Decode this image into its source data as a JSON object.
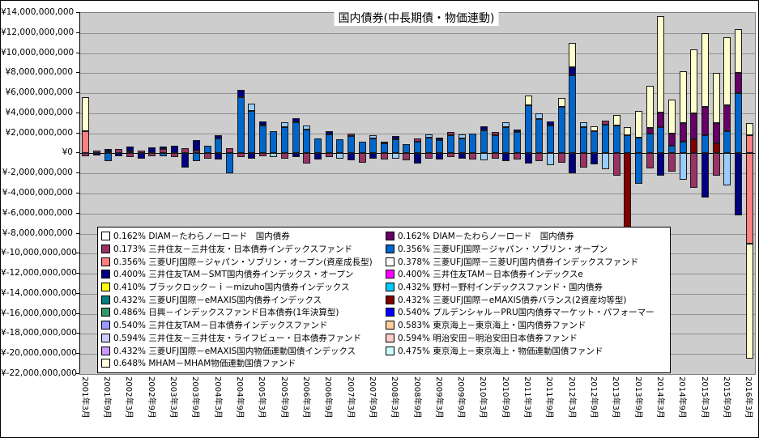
{
  "chart_data": {
    "type": "bar",
    "stacked": true,
    "title": "国内債券(中長期債・物価連動)",
    "currency": "¥",
    "unit_multiplier": 1000000000,
    "values_are_estimates": true,
    "grid": true,
    "legend_position": "inside-bottom-left",
    "y_axis": {
      "min": -22000000000,
      "max": 14000000000,
      "step": 2000000000,
      "tick_labels": [
        "¥14,000,000,000",
        "¥12,000,000,000",
        "¥10,000,000,000",
        "¥8,000,000,000",
        "¥6,000,000,000",
        "¥4,000,000,000",
        "¥2,000,000,000",
        "¥0",
        "¥-2,000,000,000",
        "¥-4,000,000,000",
        "¥-6,000,000,000",
        "¥-8,000,000,000",
        "¥-10,000,000,000",
        "¥-12,000,000,000",
        "¥-14,000,000,000",
        "¥-16,000,000,000",
        "¥-18,000,000,000",
        "¥-20,000,000,000",
        "¥-22,000,000,000"
      ]
    },
    "x_axis": {
      "tick_labels": [
        "2001年3月",
        "2001年9月",
        "2002年3月",
        "2002年9月",
        "2003年3月",
        "2003年9月",
        "2004年3月",
        "2004年9月",
        "2005年3月",
        "2005年9月",
        "2006年3月",
        "2006年9月",
        "2007年3月",
        "2007年9月",
        "2008年3月",
        "2008年9月",
        "2009年3月",
        "2009年9月",
        "2010年3月",
        "2010年9月",
        "2011年3月",
        "2011年9月",
        "2012年3月",
        "2012年9月",
        "2013年3月",
        "2013年9月",
        "2014年3月",
        "2014年9月",
        "2015年3月",
        "2015年9月",
        "2016年3月"
      ]
    },
    "palette": {
      "sovereign_blue": "#0066CC",
      "salmon": "#FF8080",
      "ivory": "#FFFFCC",
      "maroon": "#800000",
      "purple": "#660066",
      "plum": "#993366",
      "navy": "#000080",
      "skyblue": "#99CCFF"
    },
    "stack_order": [
      "sovereign_blue",
      "salmon",
      "plum",
      "navy",
      "skyblue",
      "maroon",
      "purple",
      "ivory"
    ],
    "bars": [
      {
        "t": "2001年3月",
        "p": {
          "salmon": 2.2,
          "ivory": 3.4
        },
        "n": {
          "plum": 0.3
        }
      },
      {
        "t": "2001年6月",
        "p": {
          "plum": 0.3
        },
        "n": {
          "navy": 0.2
        }
      },
      {
        "t": "2001年9月",
        "p": {
          "plum": 0.2,
          "navy": 0.2
        },
        "n": {
          "sovereign_blue": 0.8
        }
      },
      {
        "t": "2001年12月",
        "p": {
          "plum": 0.4
        },
        "n": {
          "navy": 0.3
        }
      },
      {
        "t": "2002年3月",
        "p": {
          "navy": 0.5,
          "plum": 0.2
        },
        "n": {
          "plum": 0.4
        }
      },
      {
        "t": "2002年6月",
        "p": {
          "plum": 0.3
        },
        "n": {
          "navy": 0.5
        }
      },
      {
        "t": "2002年9月",
        "p": {
          "navy": 0.6
        },
        "n": {
          "plum": 0.3
        }
      },
      {
        "t": "2002年12月",
        "p": {
          "plum": 0.4,
          "navy": 0.3
        },
        "n": {
          "sovereign_blue": 0.3
        }
      },
      {
        "t": "2003年3月",
        "p": {
          "navy": 0.8
        },
        "n": {
          "plum": 0.4
        }
      },
      {
        "t": "2003年6月",
        "p": {
          "plum": 0.5
        },
        "n": {
          "navy": 1.4
        }
      },
      {
        "t": "2003年9月",
        "p": {
          "navy": 1.0,
          "plum": 0.3
        },
        "n": {
          "sovereign_blue": 0.8
        }
      },
      {
        "t": "2003年12月",
        "p": {
          "sovereign_blue": 0.8
        },
        "n": {
          "plum": 0.5
        }
      },
      {
        "t": "2004年3月",
        "p": {
          "sovereign_blue": 1.5,
          "navy": 0.3
        },
        "n": {
          "navy": 0.6
        }
      },
      {
        "t": "2004年6月",
        "p": {
          "plum": 0.5
        },
        "n": {
          "sovereign_blue": 2.0
        }
      },
      {
        "t": "2004年9月",
        "p": {
          "sovereign_blue": 5.6,
          "navy": 0.7
        },
        "n": {
          "plum": 0.4
        }
      },
      {
        "t": "2004年12月",
        "p": {
          "sovereign_blue": 4.2,
          "skyblue": 0.8
        },
        "n": {
          "navy": 0.5
        }
      },
      {
        "t": "2005年3月",
        "p": {
          "sovereign_blue": 2.8,
          "navy": 0.4
        },
        "n": {
          "plum": 0.3
        }
      },
      {
        "t": "2005年6月",
        "p": {
          "sovereign_blue": 2.2
        },
        "n": {
          "skyblue": 0.4
        }
      },
      {
        "t": "2005年9月",
        "p": {
          "sovereign_blue": 2.6,
          "skyblue": 0.5
        },
        "n": {
          "plum": 0.5
        }
      },
      {
        "t": "2005年12月",
        "p": {
          "sovereign_blue": 3.1,
          "navy": 0.4
        },
        "n": {
          "navy": 0.4
        }
      },
      {
        "t": "2006年3月",
        "p": {
          "sovereign_blue": 2.4,
          "skyblue": 0.4
        },
        "n": {
          "plum": 1.0
        }
      },
      {
        "t": "2006年6月",
        "p": {
          "sovereign_blue": 1.5
        },
        "n": {
          "navy": 0.6
        }
      },
      {
        "t": "2006年9月",
        "p": {
          "sovereign_blue": 1.9,
          "navy": 0.3
        },
        "n": {
          "plum": 0.4
        }
      },
      {
        "t": "2006年12月",
        "p": {
          "sovereign_blue": 1.4
        },
        "n": {
          "skyblue": 0.5
        }
      },
      {
        "t": "2007年3月",
        "p": {
          "sovereign_blue": 1.7,
          "plum": 0.3
        },
        "n": {
          "navy": 0.7
        }
      },
      {
        "t": "2007年6月",
        "p": {
          "sovereign_blue": 1.2
        },
        "n": {
          "plum": 0.9
        }
      },
      {
        "t": "2007年9月",
        "p": {
          "sovereign_blue": 1.5,
          "skyblue": 0.3
        },
        "n": {
          "navy": 0.5
        }
      },
      {
        "t": "2007年12月",
        "p": {
          "sovereign_blue": 1.0,
          "plum": 0.2
        },
        "n": {
          "plum": 0.6
        }
      },
      {
        "t": "2008年3月",
        "p": {
          "sovereign_blue": 1.4,
          "navy": 0.3
        },
        "n": {
          "skyblue": 0.5
        }
      },
      {
        "t": "2008年6月",
        "p": {
          "sovereign_blue": 0.9
        },
        "n": {
          "plum": 0.7
        }
      },
      {
        "t": "2008年9月",
        "p": {
          "sovereign_blue": 1.2,
          "plum": 0.3
        },
        "n": {
          "navy": 1.0
        }
      },
      {
        "t": "2008年12月",
        "p": {
          "sovereign_blue": 1.6,
          "skyblue": 0.3
        },
        "n": {
          "plum": 0.5
        }
      },
      {
        "t": "2009年3月",
        "p": {
          "sovereign_blue": 1.3,
          "navy": 0.3
        },
        "n": {
          "navy": 0.6
        }
      },
      {
        "t": "2009年6月",
        "p": {
          "sovereign_blue": 1.8,
          "plum": 0.3
        },
        "n": {
          "plum": 0.4
        }
      },
      {
        "t": "2009年9月",
        "p": {
          "sovereign_blue": 1.5,
          "skyblue": 0.4
        },
        "n": {
          "navy": 0.5
        }
      },
      {
        "t": "2009年12月",
        "p": {
          "sovereign_blue": 2.0
        },
        "n": {
          "plum": 0.6
        }
      },
      {
        "t": "2010年3月",
        "p": {
          "sovereign_blue": 2.3,
          "navy": 0.4
        },
        "n": {
          "skyblue": 0.7
        }
      },
      {
        "t": "2010年6月",
        "p": {
          "sovereign_blue": 1.8,
          "plum": 0.3
        },
        "n": {
          "plum": 0.5
        }
      },
      {
        "t": "2010年9月",
        "p": {
          "sovereign_blue": 2.6,
          "skyblue": 0.5
        },
        "n": {
          "navy": 0.8
        }
      },
      {
        "t": "2010年12月",
        "p": {
          "sovereign_blue": 2.1,
          "navy": 0.3
        },
        "n": {
          "plum": 0.6
        }
      },
      {
        "t": "2011年3月",
        "p": {
          "sovereign_blue": 4.8,
          "ivory": 1.0
        },
        "n": {
          "navy": 1.0
        }
      },
      {
        "t": "2011年6月",
        "p": {
          "sovereign_blue": 3.4,
          "skyblue": 0.6
        },
        "n": {
          "plum": 0.8
        }
      },
      {
        "t": "2011年9月",
        "p": {
          "sovereign_blue": 2.8,
          "navy": 0.4
        },
        "n": {
          "skyblue": 1.2
        }
      },
      {
        "t": "2011年12月",
        "p": {
          "sovereign_blue": 4.6,
          "ivory": 0.9
        },
        "n": {
          "plum": 0.9
        }
      },
      {
        "t": "2012年3月",
        "p": {
          "sovereign_blue": 7.8,
          "navy": 0.8,
          "ivory": 2.4
        },
        "n": {
          "navy": 2.0
        }
      },
      {
        "t": "2012年6月",
        "p": {
          "sovereign_blue": 2.6,
          "skyblue": 0.5
        },
        "n": {
          "plum": 1.4
        }
      },
      {
        "t": "2012年9月",
        "p": {
          "sovereign_blue": 2.2,
          "ivory": 0.5
        },
        "n": {
          "navy": 1.1
        }
      },
      {
        "t": "2012年12月",
        "p": {
          "sovereign_blue": 2.9,
          "plum": 0.4
        },
        "n": {
          "skyblue": 1.6
        }
      },
      {
        "t": "2013年3月",
        "p": {
          "sovereign_blue": 2.8,
          "ivory": 1.0
        },
        "n": {
          "plum": 2.2
        }
      },
      {
        "t": "2013年6月",
        "p": {
          "sovereign_blue": 1.8,
          "ivory": 0.8
        },
        "n": {
          "maroon": 9.7
        }
      },
      {
        "t": "2013年9月",
        "p": {
          "sovereign_blue": 1.6,
          "ivory": 2.6
        },
        "n": {
          "sovereign_blue": 3.0
        }
      },
      {
        "t": "2013年12月",
        "p": {
          "sovereign_blue": 2.0,
          "purple": 0.5,
          "ivory": 4.2
        },
        "n": {
          "plum": 1.5
        }
      },
      {
        "t": "2014年3月",
        "p": {
          "sovereign_blue": 2.6,
          "purple": 1.5,
          "ivory": 9.6
        },
        "n": {
          "navy": 2.2
        }
      },
      {
        "t": "2014年6月",
        "p": {
          "sovereign_blue": 0.8,
          "purple": 1.2,
          "ivory": 3.4
        },
        "n": {
          "plum": 1.8
        }
      },
      {
        "t": "2014年9月",
        "p": {
          "sovereign_blue": 1.2,
          "purple": 1.8,
          "ivory": 5.2
        },
        "n": {
          "skyblue": 2.6
        }
      },
      {
        "t": "2014年12月",
        "p": {
          "maroon": 1.4,
          "purple": 2.6,
          "ivory": 6.4
        },
        "n": {
          "plum": 3.4
        }
      },
      {
        "t": "2015年3月",
        "p": {
          "sovereign_blue": 1.8,
          "purple": 2.8,
          "ivory": 7.4
        },
        "n": {
          "navy": 4.4
        }
      },
      {
        "t": "2015年6月",
        "p": {
          "maroon": 1.0,
          "purple": 2.0,
          "ivory": 5.0
        },
        "n": {
          "plum": 2.2
        }
      },
      {
        "t": "2015年9月",
        "p": {
          "sovereign_blue": 2.2,
          "purple": 2.6,
          "ivory": 6.8
        },
        "n": {
          "skyblue": 3.2
        }
      },
      {
        "t": "2015年12月",
        "p": {
          "sovereign_blue": 6.0,
          "purple": 2.0,
          "ivory": 4.4
        },
        "n": {
          "navy": 6.2
        }
      },
      {
        "t": "2016年3月",
        "p": {
          "salmon": 1.8,
          "ivory": 1.2
        },
        "n": {
          "salmon": 9.0,
          "ivory": 11.5
        }
      }
    ],
    "legend": {
      "columns": 2,
      "left": [
        {
          "color": "#FFFFFF",
          "label": "0.162% DIAM－たわらノーロード　国内債券"
        },
        {
          "color": "#993366",
          "label": "0.173% 三井住友－三井住友・日本債券インデックスファンド"
        },
        {
          "color": "#FF8080",
          "label": "0.356% 三菱UFJ国際－ジャパン・ソブリン・オープン(資産成長型)"
        },
        {
          "color": "#000080",
          "label": "0.400% 三井住友TAM－SMT国内債券インデックス・オープン"
        },
        {
          "color": "#FFFF00",
          "label": "0.410% ブラックロック－ｉ－mizuho国内債券インデックス"
        },
        {
          "color": "#008080",
          "label": "0.432% 三菱UFJ国際－eMAXIS国内債券インデックス"
        },
        {
          "color": "#339966",
          "label": "0.486% 日興－インデックスファンド日本債券(1年決算型)"
        },
        {
          "color": "#9999FF",
          "label": "0.540% 三井住友TAM－日本債券インデックスファンド"
        },
        {
          "color": "#CCCCFF",
          "label": "0.594% 三井住友－三井住友・ライフビュー・日本債券ファンド"
        },
        {
          "color": "#CC99FF",
          "label": "0.432% 三菱UFJ国際－eMAXIS国内物価連動国債インデックス"
        },
        {
          "color": "#FFFFE0",
          "label": "0.648% MHAM－MHAM物価連動国債ファンド"
        }
      ],
      "right": [
        {
          "color": "#660066",
          "label": "0.162% DIAM－たわらノーロード　国内債券"
        },
        {
          "color": "#0066CC",
          "label": "0.356% 三菱UFJ国際－ジャパン・ソブリン・オープン"
        },
        {
          "color": "#FFFFFF",
          "label": "0.378% 三菱UFJ国際－三菱UFJ国内債券インデックスファンド"
        },
        {
          "color": "#FF00FF",
          "label": "0.400% 三井住友TAM－日本債券インデックスe"
        },
        {
          "color": "#00CCFF",
          "label": "0.432% 野村－野村インデックスファンド・国内債券"
        },
        {
          "color": "#800000",
          "label": "0.432% 三菱UFJ国際－eMAXIS債券バランス(2資産均等型)"
        },
        {
          "color": "#0000FF",
          "label": "0.540% プルデンシャル－PRU国内債券マーケット・パフォーマー"
        },
        {
          "color": "#FFCC99",
          "label": "0.583% 東京海上－東京海上・国内債券ファンド"
        },
        {
          "color": "#FFCCCC",
          "label": "0.594% 明治安田－明治安田日本債券ファンド"
        },
        {
          "color": "#CCFFFF",
          "label": "0.475% 東京海上－東京海上・物価連動国債ファンド"
        }
      ]
    }
  }
}
